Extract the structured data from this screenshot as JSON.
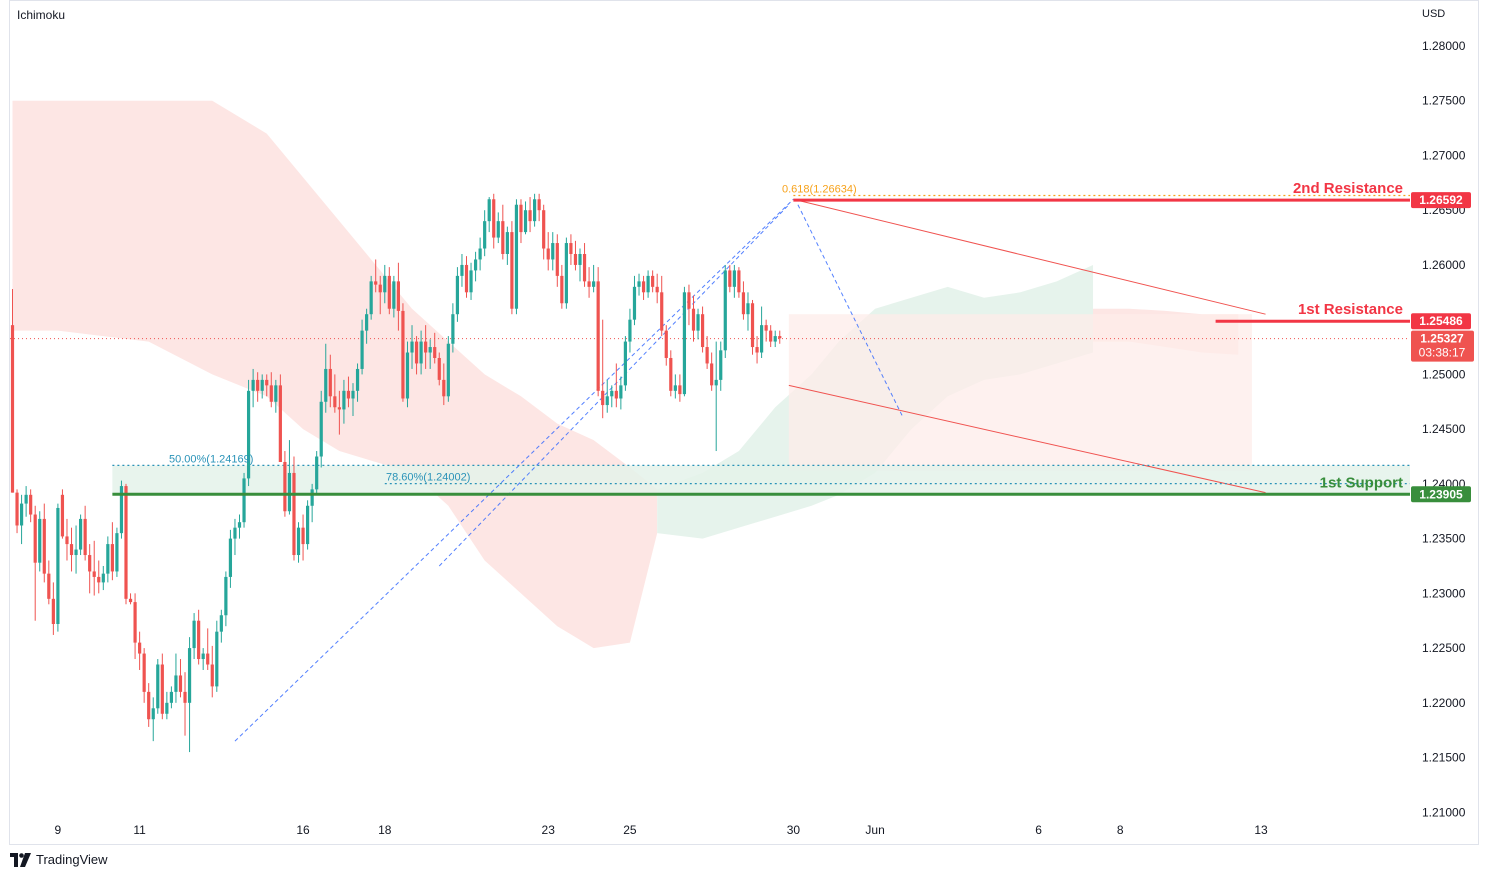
{
  "indicator": "Ichimoku",
  "currency": "USD",
  "brand": "TradingView",
  "colors": {
    "bull": "#26a69a",
    "bear": "#ef5350",
    "cloud_bull": "#e6f3ec",
    "cloud_bear": "#fde6e4",
    "resistance": "#f23645",
    "support": "#388e3c",
    "fib_fill": "#e4f2ea",
    "fib_line": "#2a93b8",
    "channel": "#f05350",
    "channel_fill": "#fdecea",
    "trend": "#2962ff"
  },
  "chart_data": {
    "type": "candlestick",
    "symbol_currency": "USD",
    "y_axis": {
      "ylim": [
        1.2065,
        1.2833
      ],
      "ticks": [
        "1.28000",
        "1.27500",
        "1.27000",
        "1.26500",
        "1.26000",
        "1.25500",
        "1.25000",
        "1.24500",
        "1.24000",
        "1.23500",
        "1.23000",
        "1.22500",
        "1.22000",
        "1.21500",
        "1.21000"
      ]
    },
    "x_axis": {
      "ticks": [
        {
          "label": "9",
          "bar": 10
        },
        {
          "label": "11",
          "bar": 28
        },
        {
          "label": "16",
          "bar": 64
        },
        {
          "label": "18",
          "bar": 82
        },
        {
          "label": "23",
          "bar": 118
        },
        {
          "label": "25",
          "bar": 136
        },
        {
          "label": "30",
          "bar": 172
        },
        {
          "label": "Jun",
          "bar": 190
        },
        {
          "label": "6",
          "bar": 226
        },
        {
          "label": "8",
          "bar": 244
        },
        {
          "label": "13",
          "bar": 275
        }
      ]
    },
    "candles": [
      [
        1.2545,
        1.2578,
        1.2392,
        1.2392
      ],
      [
        1.2392,
        1.2395,
        1.2355,
        1.2362
      ],
      [
        1.2362,
        1.239,
        1.2345,
        1.2382
      ],
      [
        1.2382,
        1.2398,
        1.237,
        1.239
      ],
      [
        1.239,
        1.2395,
        1.2365,
        1.2372
      ],
      [
        1.2372,
        1.238,
        1.2275,
        1.2328
      ],
      [
        1.2328,
        1.2375,
        1.232,
        1.2368
      ],
      [
        1.2368,
        1.2382,
        1.231,
        1.2318
      ],
      [
        1.2318,
        1.233,
        1.229,
        1.2295
      ],
      [
        1.2295,
        1.231,
        1.2262,
        1.2272
      ],
      [
        1.2272,
        1.2382,
        1.2265,
        1.2378
      ],
      [
        1.239,
        1.2395,
        1.235,
        1.2352
      ],
      [
        1.2352,
        1.2368,
        1.233,
        1.2345
      ],
      [
        1.2345,
        1.236,
        1.232,
        1.2335
      ],
      [
        1.2335,
        1.2362,
        1.2318,
        1.234
      ],
      [
        1.234,
        1.2372,
        1.2335,
        1.2368
      ],
      [
        1.2368,
        1.238,
        1.233,
        1.2335
      ],
      [
        1.2335,
        1.2345,
        1.23,
        1.232
      ],
      [
        1.232,
        1.2348,
        1.2298,
        1.2315
      ],
      [
        1.2315,
        1.233,
        1.23,
        1.231
      ],
      [
        1.231,
        1.2325,
        1.2303,
        1.2318
      ],
      [
        1.2318,
        1.2352,
        1.231,
        1.2345
      ],
      [
        1.2345,
        1.2365,
        1.2312,
        1.232
      ],
      [
        1.232,
        1.236,
        1.2315,
        1.2355
      ],
      [
        1.2355,
        1.2403,
        1.235,
        1.2398
      ],
      [
        1.2398,
        1.24,
        1.229,
        1.2295
      ],
      [
        1.2295,
        1.23,
        1.229,
        1.2292
      ],
      [
        1.2292,
        1.23,
        1.224,
        1.2255
      ],
      [
        1.2255,
        1.2265,
        1.223,
        1.2245
      ],
      [
        1.2245,
        1.225,
        1.22,
        1.221
      ],
      [
        1.221,
        1.2218,
        1.2178,
        1.2185
      ],
      [
        1.2185,
        1.2205,
        1.2165,
        1.2195
      ],
      [
        1.2195,
        1.224,
        1.219,
        1.2235
      ],
      [
        1.2235,
        1.2245,
        1.2185,
        1.219
      ],
      [
        1.219,
        1.221,
        1.2185,
        1.22
      ],
      [
        1.22,
        1.2215,
        1.2195,
        1.221
      ],
      [
        1.221,
        1.2245,
        1.22,
        1.2225
      ],
      [
        1.2225,
        1.224,
        1.2205,
        1.221
      ],
      [
        1.221,
        1.2228,
        1.217,
        1.22
      ],
      [
        1.22,
        1.226,
        1.2155,
        1.225
      ],
      [
        1.225,
        1.2282,
        1.224,
        1.2275
      ],
      [
        1.2275,
        1.2285,
        1.2235,
        1.224
      ],
      [
        1.224,
        1.225,
        1.223,
        1.2245
      ],
      [
        1.2245,
        1.2268,
        1.223,
        1.2235
      ],
      [
        1.2235,
        1.2252,
        1.2205,
        1.2215
      ],
      [
        1.2215,
        1.2275,
        1.221,
        1.2265
      ],
      [
        1.2265,
        1.2285,
        1.2255,
        1.228
      ],
      [
        1.228,
        1.232,
        1.227,
        1.2315
      ],
      [
        1.2315,
        1.2358,
        1.2305,
        1.235
      ],
      [
        1.235,
        1.2368,
        1.2335,
        1.236
      ],
      [
        1.236,
        1.2372,
        1.235,
        1.2365
      ],
      [
        1.2365,
        1.241,
        1.236,
        1.2405
      ],
      [
        1.2405,
        1.2495,
        1.2398,
        1.2485
      ],
      [
        1.2485,
        1.2505,
        1.247,
        1.2495
      ],
      [
        1.2495,
        1.2502,
        1.2475,
        1.2485
      ],
      [
        1.2485,
        1.25,
        1.2478,
        1.2495
      ],
      [
        1.2495,
        1.25,
        1.248,
        1.249
      ],
      [
        1.249,
        1.2502,
        1.247,
        1.2475
      ],
      [
        1.2475,
        1.2495,
        1.2465,
        1.249
      ],
      [
        1.249,
        1.25,
        1.242,
        1.242
      ],
      [
        1.242,
        1.243,
        1.237,
        1.2375
      ],
      [
        1.2375,
        1.244,
        1.2372,
        1.241
      ],
      [
        1.241,
        1.2425,
        1.233,
        1.2335
      ],
      [
        1.2335,
        1.2365,
        1.2328,
        1.236
      ],
      [
        1.236,
        1.2372,
        1.233,
        1.2345
      ],
      [
        1.2345,
        1.2385,
        1.234,
        1.238
      ],
      [
        1.238,
        1.24,
        1.2365,
        1.2395
      ],
      [
        1.2395,
        1.243,
        1.239,
        1.2425
      ],
      [
        1.2425,
        1.2485,
        1.2415,
        1.2475
      ],
      [
        1.2475,
        1.2528,
        1.2465,
        1.2505
      ],
      [
        1.2505,
        1.2518,
        1.247,
        1.248
      ],
      [
        1.248,
        1.25,
        1.2465,
        1.247
      ],
      [
        1.247,
        1.2485,
        1.2445,
        1.2468
      ],
      [
        1.2468,
        1.2495,
        1.2455,
        1.2485
      ],
      [
        1.2485,
        1.2498,
        1.247,
        1.2478
      ],
      [
        1.2478,
        1.2492,
        1.2462,
        1.2485
      ],
      [
        1.2485,
        1.251,
        1.2475,
        1.2505
      ],
      [
        1.2505,
        1.255,
        1.25,
        1.254
      ],
      [
        1.254,
        1.256,
        1.2528,
        1.2555
      ],
      [
        1.2555,
        1.259,
        1.255,
        1.2585
      ],
      [
        1.2585,
        1.2605,
        1.2575,
        1.2582
      ],
      [
        1.2582,
        1.259,
        1.2555,
        1.2575
      ],
      [
        1.2575,
        1.26,
        1.2565,
        1.259
      ],
      [
        1.259,
        1.2598,
        1.2555,
        1.256
      ],
      [
        1.256,
        1.259,
        1.2552,
        1.2585
      ],
      [
        1.2585,
        1.2602,
        1.254,
        1.2558
      ],
      [
        1.2558,
        1.2565,
        1.2475,
        1.2478
      ],
      [
        1.2478,
        1.253,
        1.247,
        1.252
      ],
      [
        1.252,
        1.2545,
        1.2505,
        1.253
      ],
      [
        1.253,
        1.2535,
        1.25,
        1.251
      ],
      [
        1.251,
        1.254,
        1.25,
        1.253
      ],
      [
        1.253,
        1.2545,
        1.2505,
        1.252
      ],
      [
        1.252,
        1.2532,
        1.2505,
        1.2525
      ],
      [
        1.2525,
        1.2538,
        1.251,
        1.2515
      ],
      [
        1.2515,
        1.252,
        1.249,
        1.2495
      ],
      [
        1.2495,
        1.251,
        1.2472,
        1.248
      ],
      [
        1.248,
        1.2535,
        1.2475,
        1.2528
      ],
      [
        1.2528,
        1.2565,
        1.252,
        1.2555
      ],
      [
        1.2555,
        1.2598,
        1.2548,
        1.259
      ],
      [
        1.259,
        1.261,
        1.258,
        1.26
      ],
      [
        1.26,
        1.2608,
        1.257,
        1.2575
      ],
      [
        1.2575,
        1.2602,
        1.2568,
        1.2595
      ],
      [
        1.2595,
        1.2612,
        1.2585,
        1.2605
      ],
      [
        1.2605,
        1.2625,
        1.2595,
        1.2615
      ],
      [
        1.2615,
        1.265,
        1.2608,
        1.264
      ],
      [
        1.264,
        1.2662,
        1.263,
        1.266
      ],
      [
        1.266,
        1.2665,
        1.2615,
        1.2625
      ],
      [
        1.2625,
        1.2648,
        1.262,
        1.264
      ],
      [
        1.264,
        1.2655,
        1.2605,
        1.261
      ],
      [
        1.261,
        1.2635,
        1.26,
        1.263
      ],
      [
        1.263,
        1.264,
        1.2555,
        1.256
      ],
      [
        1.256,
        1.266,
        1.2555,
        1.2655
      ],
      [
        1.2655,
        1.266,
        1.262,
        1.263
      ],
      [
        1.263,
        1.2658,
        1.2628,
        1.265
      ],
      [
        1.265,
        1.2662,
        1.263,
        1.264
      ],
      [
        1.264,
        1.2665,
        1.2635,
        1.266
      ],
      [
        1.266,
        1.2665,
        1.264,
        1.265
      ],
      [
        1.265,
        1.2655,
        1.2605,
        1.2615
      ],
      [
        1.2615,
        1.263,
        1.2595,
        1.2605
      ],
      [
        1.2605,
        1.263,
        1.2595,
        1.262
      ],
      [
        1.262,
        1.2628,
        1.258,
        1.259
      ],
      [
        1.259,
        1.26,
        1.256,
        1.2565
      ],
      [
        1.2565,
        1.2625,
        1.256,
        1.262
      ],
      [
        1.262,
        1.2628,
        1.26,
        1.261
      ],
      [
        1.261,
        1.2622,
        1.2595,
        1.26
      ],
      [
        1.26,
        1.2615,
        1.2585,
        1.261
      ],
      [
        1.261,
        1.262,
        1.258,
        1.2585
      ],
      [
        1.2585,
        1.2598,
        1.257,
        1.258
      ],
      [
        1.258,
        1.26,
        1.2575,
        1.2585
      ],
      [
        1.2585,
        1.2598,
        1.248,
        1.2485
      ],
      [
        1.2485,
        1.255,
        1.246,
        1.2472
      ],
      [
        1.2472,
        1.2495,
        1.2465,
        1.248
      ],
      [
        1.248,
        1.249,
        1.247,
        1.2485
      ],
      [
        1.2485,
        1.251,
        1.247,
        1.2478
      ],
      [
        1.2478,
        1.2498,
        1.2468,
        1.249
      ],
      [
        1.249,
        1.2535,
        1.2485,
        1.253
      ],
      [
        1.253,
        1.256,
        1.252,
        1.255
      ],
      [
        1.255,
        1.259,
        1.2545,
        1.258
      ],
      [
        1.258,
        1.2592,
        1.2572,
        1.2585
      ],
      [
        1.2585,
        1.259,
        1.2568,
        1.2575
      ],
      [
        1.2575,
        1.2595,
        1.257,
        1.259
      ],
      [
        1.259,
        1.2595,
        1.2575,
        1.258
      ],
      [
        1.258,
        1.2592,
        1.2565,
        1.2575
      ],
      [
        1.2575,
        1.259,
        1.2535,
        1.254
      ],
      [
        1.254,
        1.2545,
        1.2508,
        1.2515
      ],
      [
        1.2515,
        1.2522,
        1.248,
        1.2485
      ],
      [
        1.2485,
        1.25,
        1.2478,
        1.249
      ],
      [
        1.249,
        1.25,
        1.2475,
        1.2482
      ],
      [
        1.2482,
        1.258,
        1.248,
        1.2575
      ],
      [
        1.2575,
        1.2582,
        1.2545,
        1.256
      ],
      [
        1.256,
        1.2572,
        1.253,
        1.254
      ],
      [
        1.254,
        1.256,
        1.2532,
        1.2555
      ],
      [
        1.2555,
        1.2562,
        1.252,
        1.2525
      ],
      [
        1.2525,
        1.2535,
        1.2505,
        1.251
      ],
      [
        1.251,
        1.252,
        1.2485,
        1.249
      ],
      [
        1.249,
        1.253,
        1.243,
        1.2495
      ],
      [
        1.2495,
        1.253,
        1.2485,
        1.2522
      ],
      [
        1.2522,
        1.26,
        1.2515,
        1.2595
      ],
      [
        1.2595,
        1.26,
        1.2575,
        1.258
      ],
      [
        1.258,
        1.26,
        1.257,
        1.2595
      ],
      [
        1.2595,
        1.2598,
        1.257,
        1.2575
      ],
      [
        1.2575,
        1.2585,
        1.255,
        1.2555
      ],
      [
        1.2555,
        1.2575,
        1.254,
        1.2565
      ],
      [
        1.2565,
        1.2568,
        1.2518,
        1.2525
      ],
      [
        1.2525,
        1.2535,
        1.251,
        1.252
      ],
      [
        1.252,
        1.2562,
        1.2515,
        1.2545
      ],
      [
        1.2545,
        1.255,
        1.253,
        1.254
      ],
      [
        1.254,
        1.2545,
        1.2525,
        1.253
      ],
      [
        1.253,
        1.254,
        1.2525,
        1.2535
      ],
      [
        1.2535,
        1.254,
        1.2528,
        1.2533
      ]
    ],
    "ichimoku_cloud": {
      "bearish_span": {
        "bars": [
          0,
          10,
          30,
          44,
          56,
          64,
          72,
          80,
          88,
          96,
          104,
          112,
          120,
          128,
          136,
          142
        ],
        "upper": [
          1.275,
          1.275,
          1.275,
          1.275,
          1.272,
          1.268,
          1.264,
          1.26,
          1.256,
          1.253,
          1.25,
          1.248,
          1.2455,
          1.244,
          1.2415,
          1.2395
        ],
        "lower": [
          1.254,
          1.254,
          1.253,
          1.25,
          1.248,
          1.245,
          1.243,
          1.242,
          1.241,
          1.238,
          1.233,
          1.23,
          1.227,
          1.225,
          1.2255,
          1.2355
        ]
      },
      "bullish_span": {
        "bars": [
          142,
          152,
          160,
          168,
          176,
          182,
          190,
          198,
          206,
          214,
          222,
          230,
          238
        ],
        "upper": [
          1.2395,
          1.241,
          1.243,
          1.247,
          1.25,
          1.253,
          1.256,
          1.257,
          1.258,
          1.257,
          1.2575,
          1.2585,
          1.26
        ],
        "lower": [
          1.2355,
          1.235,
          1.236,
          1.237,
          1.238,
          1.239,
          1.241,
          1.245,
          1.248,
          1.2495,
          1.25,
          1.251,
          1.252
        ]
      },
      "future_bear": {
        "bars": [
          238,
          246,
          254,
          262,
          270
        ],
        "upper": [
          1.256,
          1.256,
          1.2558,
          1.2555,
          1.2555
        ],
        "lower": [
          1.253,
          1.253,
          1.2525,
          1.252,
          1.2518
        ]
      }
    },
    "levels": [
      {
        "name": "2nd Resistance",
        "value": "1.26592",
        "price": 1.26592
      },
      {
        "name": "1st Resistance",
        "value": "1.25486",
        "price": 1.25486
      },
      {
        "name": "1st Support",
        "value": "1.23905",
        "price": 1.23905
      }
    ],
    "current_price": {
      "value": "1.25327",
      "price": 1.25327,
      "countdown": "03:38:17"
    },
    "fibonacci": [
      {
        "label": "0.618(1.26634)",
        "price": 1.26634
      },
      {
        "label": "50.00%(1.24169)",
        "price": 1.24169
      },
      {
        "label": "78.60%(1.24002)",
        "price": 1.24002
      }
    ],
    "channel": {
      "upper": [
        [
          172,
          1.266
        ],
        [
          276,
          1.2555
        ]
      ],
      "lower": [
        [
          171,
          1.249
        ],
        [
          276,
          1.2392
        ]
      ],
      "rect": {
        "bars": [
          171,
          273
        ],
        "prices": [
          1.2555,
          1.2412
        ]
      }
    },
    "trend_lines": [
      {
        "from": [
          49,
          1.2165
        ],
        "to": [
          172,
          1.266
        ]
      },
      {
        "from": [
          94,
          1.2325
        ],
        "to": [
          171,
          1.2655
        ]
      },
      {
        "from": [
          173,
          1.2655
        ],
        "to": [
          196,
          1.2462
        ]
      }
    ]
  }
}
